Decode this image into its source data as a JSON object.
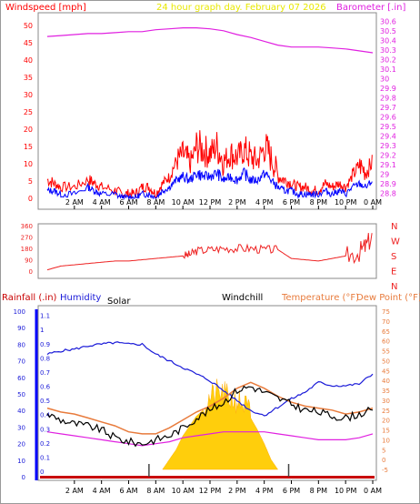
{
  "colors": {
    "windspeed": "#ff0000",
    "windspeed_alt": "#0000ff",
    "barometer": "#e020e0",
    "title": "#e8e800",
    "direction": "#ee2222",
    "rainfall": "#c80000",
    "humidity": "#1a1ad8",
    "solar": "#ffcc00",
    "windchill": "#000000",
    "temperature": "#e87b3c",
    "dewpoint": "#e020e0",
    "axis_rain": "#0000ff",
    "axis_right_lower": "#e87b3c",
    "frame": "#888888"
  },
  "header": {
    "windspeed_label": "Windspeed [mph]",
    "title": "24 hour graph day.  February 07 2026",
    "barometer_label": "Barometer [.in]"
  },
  "lower_header": {
    "rainfall_label": "Rainfall (.in)",
    "humidity_label": "Humidity",
    "solar_label": "Solar",
    "windchill_label": "Windchill",
    "temperature_label": "Temperature (°F)",
    "dewpoint_label": "Dew Point (°F)"
  },
  "chart_data": [
    {
      "type": "line",
      "name": "wind",
      "x_ticks": [
        "2 AM",
        "4 AM",
        "6 AM",
        "8 AM",
        "10 AM",
        "12 PM",
        "2 PM",
        "4 PM",
        "6 PM",
        "8 PM",
        "10 PM",
        "0 AM"
      ],
      "y_left_label": "Windspeed [mph]",
      "y_left_ticks": [
        "0",
        "5",
        "10",
        "15",
        "20",
        "25",
        "30",
        "35",
        "40",
        "45",
        "50"
      ],
      "y_left_range": [
        0,
        50
      ],
      "y_right_label": "Barometer [.in]",
      "y_right_ticks": [
        "28.8",
        "28.9",
        "29",
        "29.1",
        "29.2",
        "29.3",
        "29.4",
        "29.5",
        "29.6",
        "29.7",
        "29.8",
        "29.9",
        "30",
        "30.1",
        "30.2",
        "30.3",
        "30.4",
        "30.5",
        "30.6"
      ],
      "y_right_range": [
        28.75,
        30.65
      ],
      "series": [
        {
          "key": "gust",
          "x": [
            0,
            0.5,
            1,
            2,
            3,
            3.5,
            4,
            5,
            5.5,
            6,
            6.5,
            7,
            7.5,
            8,
            8.5,
            9,
            9.5,
            10,
            10.5,
            11,
            11.5,
            12,
            12.5,
            13,
            13.5,
            14,
            14.5,
            15,
            15.5,
            16,
            16.5,
            17,
            17.5,
            18,
            18.5,
            19,
            19.5,
            20,
            20.5,
            21,
            21.5,
            22,
            22.5,
            23,
            23.5,
            24
          ],
          "values": [
            5,
            4,
            3,
            3,
            5,
            4,
            3,
            2,
            1,
            1,
            1,
            3,
            3,
            1,
            4,
            6,
            10,
            12,
            9,
            14,
            13,
            12,
            14,
            10,
            12,
            11,
            13,
            11,
            10,
            14,
            11,
            6,
            5,
            4,
            3,
            3,
            2,
            2,
            4,
            3,
            4,
            3,
            6,
            9,
            7,
            10
          ]
        },
        {
          "key": "average",
          "x": [
            0,
            0.5,
            1,
            2,
            3,
            3.5,
            4,
            5,
            5.5,
            6,
            6.5,
            7,
            7.5,
            8,
            8.5,
            9,
            9.5,
            10,
            10.5,
            11,
            11.5,
            12,
            12.5,
            13,
            13.5,
            14,
            14.5,
            15,
            15.5,
            16,
            16.5,
            17,
            17.5,
            18,
            18.5,
            19,
            19.5,
            20,
            20.5,
            21,
            21.5,
            22,
            22.5,
            23,
            23.5,
            24
          ],
          "values": [
            2,
            2,
            1,
            1,
            3,
            2,
            1,
            1,
            0,
            0,
            0,
            1,
            1,
            0,
            2,
            3,
            5,
            6,
            5,
            7,
            6,
            6,
            7,
            5,
            6,
            5,
            7,
            5,
            5,
            7,
            5,
            3,
            2,
            2,
            1,
            1,
            1,
            1,
            2,
            1,
            2,
            1,
            3,
            4,
            3,
            5
          ]
        },
        {
          "key": "barometer",
          "x": [
            0,
            1,
            2,
            3,
            4,
            5,
            6,
            7,
            8,
            9,
            10,
            11,
            12,
            13,
            14,
            15,
            16,
            17,
            18,
            19,
            20,
            21,
            22,
            23,
            24
          ],
          "values": [
            30.44,
            30.45,
            30.46,
            30.47,
            30.47,
            30.48,
            30.49,
            30.49,
            30.51,
            30.52,
            30.53,
            30.53,
            30.52,
            30.5,
            30.46,
            30.43,
            30.39,
            30.35,
            30.33,
            30.33,
            30.33,
            30.32,
            30.31,
            30.29,
            30.27
          ]
        }
      ]
    },
    {
      "type": "line",
      "name": "wind-direction",
      "y_left_ticks": [
        "0",
        "90",
        "180",
        "270",
        "360"
      ],
      "y_left_range": [
        0,
        360
      ],
      "y_right_ticks": [
        "N",
        "W",
        "S",
        "E",
        "N"
      ],
      "series": [
        {
          "key": "direction",
          "x": [
            0,
            1,
            2,
            3,
            4,
            5,
            6,
            7,
            8,
            9,
            10,
            10.5,
            11,
            12,
            13,
            14,
            15,
            16,
            17,
            18,
            19,
            20,
            21,
            22,
            23,
            23.5,
            24
          ],
          "values": [
            10,
            40,
            50,
            60,
            70,
            80,
            80,
            90,
            100,
            110,
            120,
            130,
            160,
            170,
            180,
            180,
            180,
            170,
            170,
            100,
            90,
            80,
            100,
            120,
            150,
            200,
            280
          ]
        }
      ]
    },
    {
      "type": "line",
      "name": "weather",
      "x_ticks": [
        "2 AM",
        "4 AM",
        "6 AM",
        "8 AM",
        "10 AM",
        "12 PM",
        "2 PM",
        "4 PM",
        "6 PM",
        "8 PM",
        "10 PM",
        "0 AM"
      ],
      "y_rain_ticks": [
        "0",
        "0.1",
        "0.2",
        "0.3",
        "0.4",
        "0.5",
        "0.6",
        "0.7",
        "0.8",
        "0.9",
        "1",
        "1.1"
      ],
      "y_left_ticks": [
        "0",
        "10",
        "20",
        "30",
        "40",
        "50",
        "60",
        "70",
        "80",
        "90",
        "100"
      ],
      "y_left_range": [
        0,
        100
      ],
      "y_right_ticks": [
        "-5",
        "0",
        "5",
        "10",
        "15",
        "20",
        "25",
        "30",
        "35",
        "40",
        "45",
        "50",
        "55",
        "60",
        "65",
        "70",
        "75"
      ],
      "y_right_range": [
        -5,
        75
      ],
      "series": [
        {
          "key": "humidity",
          "x": [
            0,
            1,
            2,
            3,
            4,
            5,
            6,
            7,
            8,
            9,
            10,
            11,
            12,
            13,
            14,
            15,
            16,
            17,
            18,
            19,
            20,
            21,
            22,
            23,
            24
          ],
          "values": [
            74,
            76,
            77,
            79,
            80,
            81,
            80,
            80,
            74,
            70,
            66,
            62,
            58,
            52,
            46,
            40,
            37,
            42,
            47,
            51,
            57,
            55,
            55,
            56,
            62
          ]
        },
        {
          "key": "temperature",
          "x": [
            0,
            1,
            2,
            3,
            4,
            5,
            6,
            7,
            8,
            9,
            10,
            11,
            12,
            13,
            14,
            15,
            16,
            17,
            18,
            19,
            20,
            21,
            22,
            23,
            24
          ],
          "values": [
            26,
            24,
            23,
            21,
            19,
            17,
            14,
            13,
            13,
            16,
            20,
            24,
            27,
            31,
            36,
            39,
            36,
            32,
            29,
            27,
            26,
            25,
            23,
            24,
            26
          ]
        },
        {
          "key": "windchill",
          "x": [
            0,
            1,
            2,
            3,
            4,
            5,
            6,
            7,
            8,
            9,
            10,
            11,
            12,
            13,
            14,
            15,
            16,
            17,
            18,
            19,
            20,
            21,
            22,
            23,
            24
          ],
          "values": [
            23,
            20,
            18,
            17,
            15,
            11,
            9,
            8,
            10,
            12,
            16,
            21,
            25,
            29,
            35,
            37,
            34,
            31,
            28,
            25,
            24,
            22,
            21,
            23,
            25
          ]
        },
        {
          "key": "dewpoint",
          "x": [
            0,
            1,
            2,
            3,
            4,
            5,
            6,
            7,
            8,
            9,
            10,
            11,
            12,
            13,
            14,
            15,
            16,
            17,
            18,
            19,
            20,
            21,
            22,
            23,
            24
          ],
          "values": [
            14,
            13,
            12,
            11,
            10,
            9,
            8,
            7,
            8,
            9,
            11,
            12,
            13,
            14,
            14,
            14,
            14,
            13,
            12,
            11,
            10,
            10,
            10,
            11,
            13
          ]
        },
        {
          "key": "solar",
          "x": [
            8.5,
            9,
            9.5,
            10,
            10.5,
            11,
            11.5,
            12,
            12.5,
            13,
            13.5,
            14,
            14.5,
            15,
            15.5,
            16,
            16.5,
            17
          ],
          "values": [
            0,
            5,
            10,
            17,
            22,
            27,
            30,
            33,
            36,
            35,
            33,
            32,
            30,
            26,
            20,
            13,
            5,
            0
          ]
        },
        {
          "key": "rainfall",
          "x": [
            0,
            24
          ],
          "values": [
            0,
            0
          ]
        }
      ]
    }
  ]
}
